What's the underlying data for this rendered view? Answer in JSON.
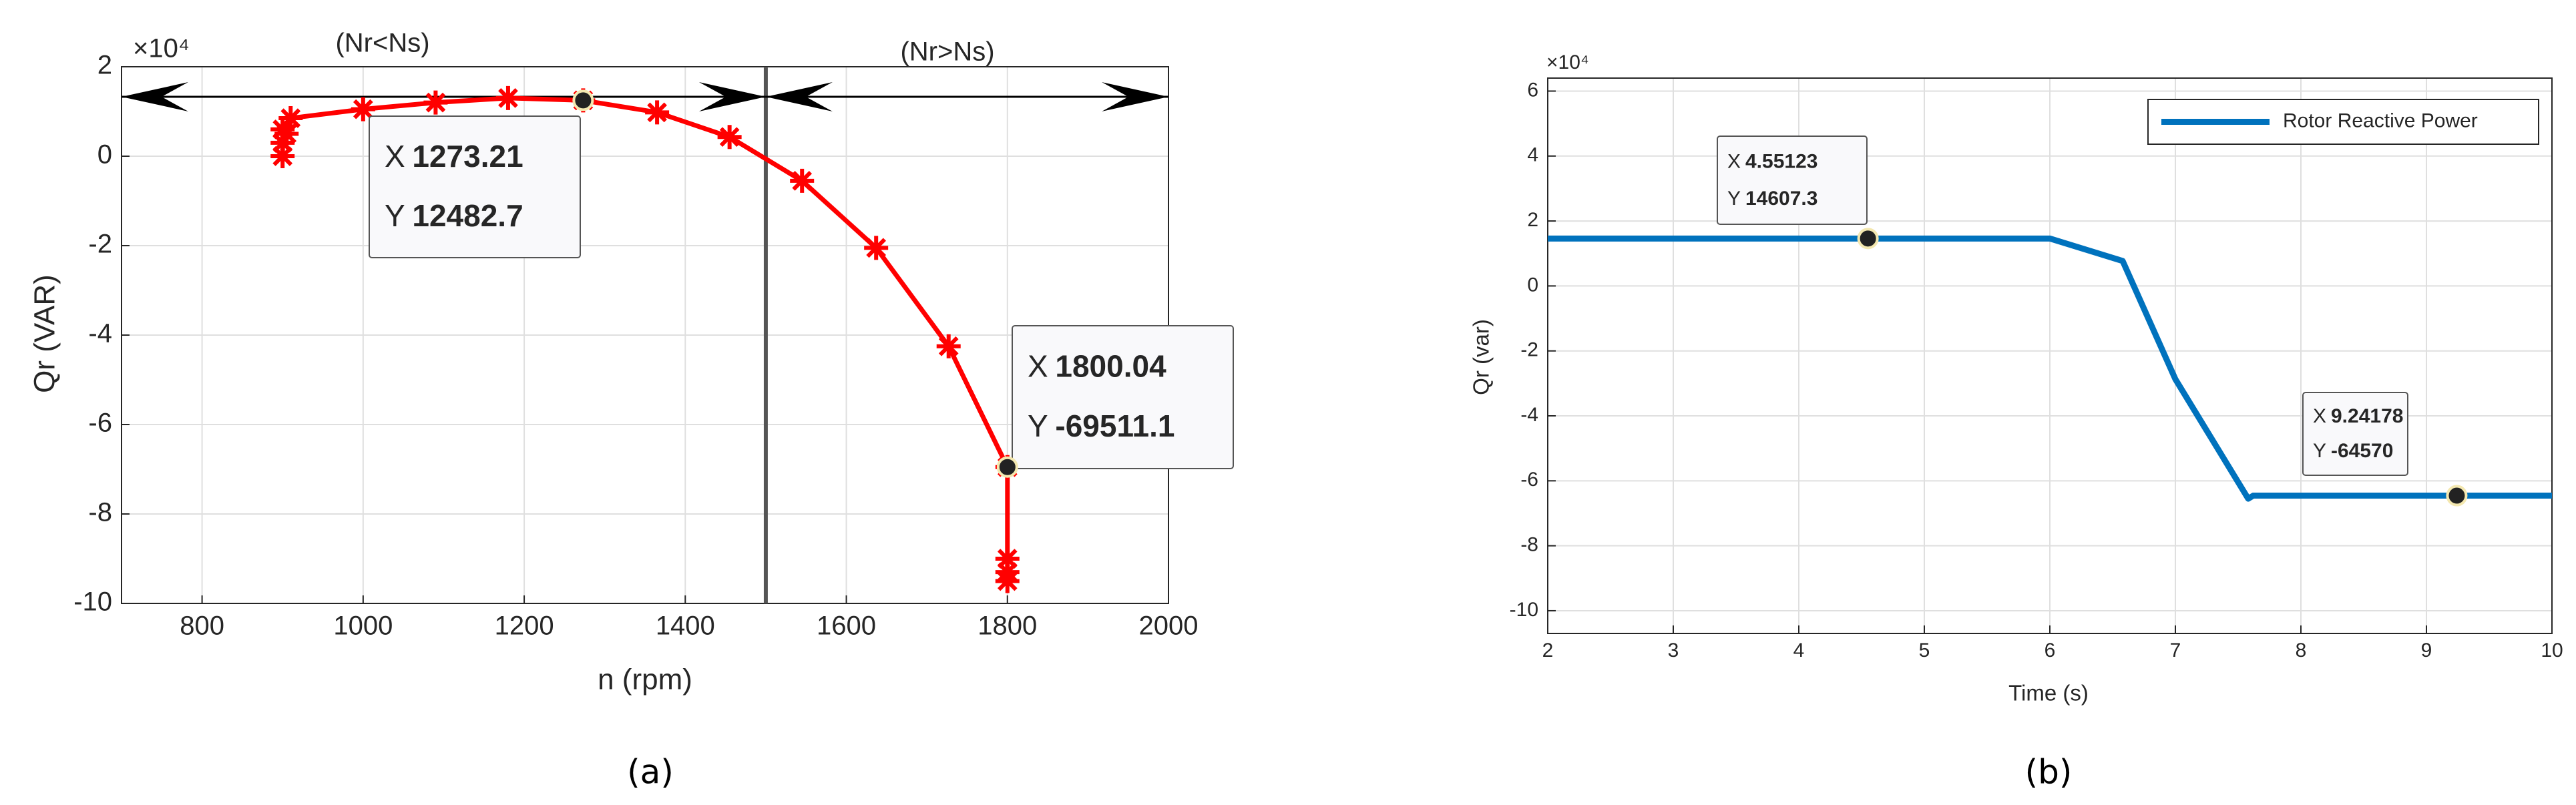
{
  "chart_data": [
    {
      "type": "line",
      "marker": "asterisk",
      "color": "#ff0000",
      "xlabel": "n (rpm)",
      "ylabel": "Qr (VAR)",
      "y_exponent": "×10⁴",
      "caption": "(a)",
      "x": [
        900,
        900,
        900,
        905,
        910,
        1000,
        1090,
        1180,
        1273.21,
        1365,
        1455,
        1545,
        1637,
        1727,
        1800.04,
        1800,
        1800,
        1800
      ],
      "values": [
        0,
        3000,
        6000,
        5000,
        8500,
        10500,
        12000,
        13000,
        12482.7,
        9800,
        4300,
        -5500,
        -20500,
        -42500,
        -69511.1,
        -90000,
        -93000,
        -95000
      ],
      "xlim": [
        700,
        2000
      ],
      "ylim": [
        -100000,
        20000
      ],
      "xticks": [
        800,
        1000,
        1200,
        1400,
        1600,
        1800,
        2000
      ],
      "yticks": [
        {
          "value": -100000,
          "label": "-10"
        },
        {
          "value": -80000,
          "label": "-8"
        },
        {
          "value": -60000,
          "label": "-6"
        },
        {
          "value": -40000,
          "label": "-4"
        },
        {
          "value": -20000,
          "label": "-2"
        },
        {
          "value": 0,
          "label": "0"
        },
        {
          "value": 20000,
          "label": "2"
        }
      ],
      "grid": true,
      "vline": 1500,
      "annotations": [
        "(Nr<Ns)",
        "(Nr>Ns)"
      ],
      "datatips": [
        {
          "x_label": "X",
          "x": 1273.21,
          "y_label": "Y",
          "y": 12482.7
        },
        {
          "x_label": "X",
          "x": 1800.04,
          "y_label": "Y",
          "y": -69511.1
        }
      ]
    },
    {
      "type": "line",
      "color": "#0072bd",
      "name": "Rotor Reactive Power",
      "legend": "northeast",
      "xlabel": "Time (s)",
      "ylabel": "Qr (var)",
      "y_exponent": "×10⁴",
      "caption": "(b)",
      "x": [
        2,
        6,
        6.58,
        7,
        7.58,
        7.62,
        10
      ],
      "values": [
        14607.3,
        14607.3,
        7700,
        -28700,
        -65500,
        -64570,
        -64570
      ],
      "xlim": [
        2,
        10
      ],
      "ylim": [
        -107000,
        64000
      ],
      "xticks": [
        2,
        3,
        4,
        5,
        6,
        7,
        8,
        9,
        10
      ],
      "yticks": [
        {
          "value": -100000,
          "label": "-10"
        },
        {
          "value": -80000,
          "label": "-8"
        },
        {
          "value": -60000,
          "label": "-6"
        },
        {
          "value": -40000,
          "label": "-4"
        },
        {
          "value": -20000,
          "label": "-2"
        },
        {
          "value": 0,
          "label": "0"
        },
        {
          "value": 20000,
          "label": "2"
        },
        {
          "value": 40000,
          "label": "4"
        },
        {
          "value": 60000,
          "label": "6"
        }
      ],
      "grid": true,
      "datatips": [
        {
          "x_label": "X",
          "x": 4.55123,
          "y_label": "Y",
          "y": 14607.3
        },
        {
          "x_label": "X",
          "x": 9.24178,
          "y_label": "Y",
          "y": -64570
        }
      ]
    }
  ]
}
